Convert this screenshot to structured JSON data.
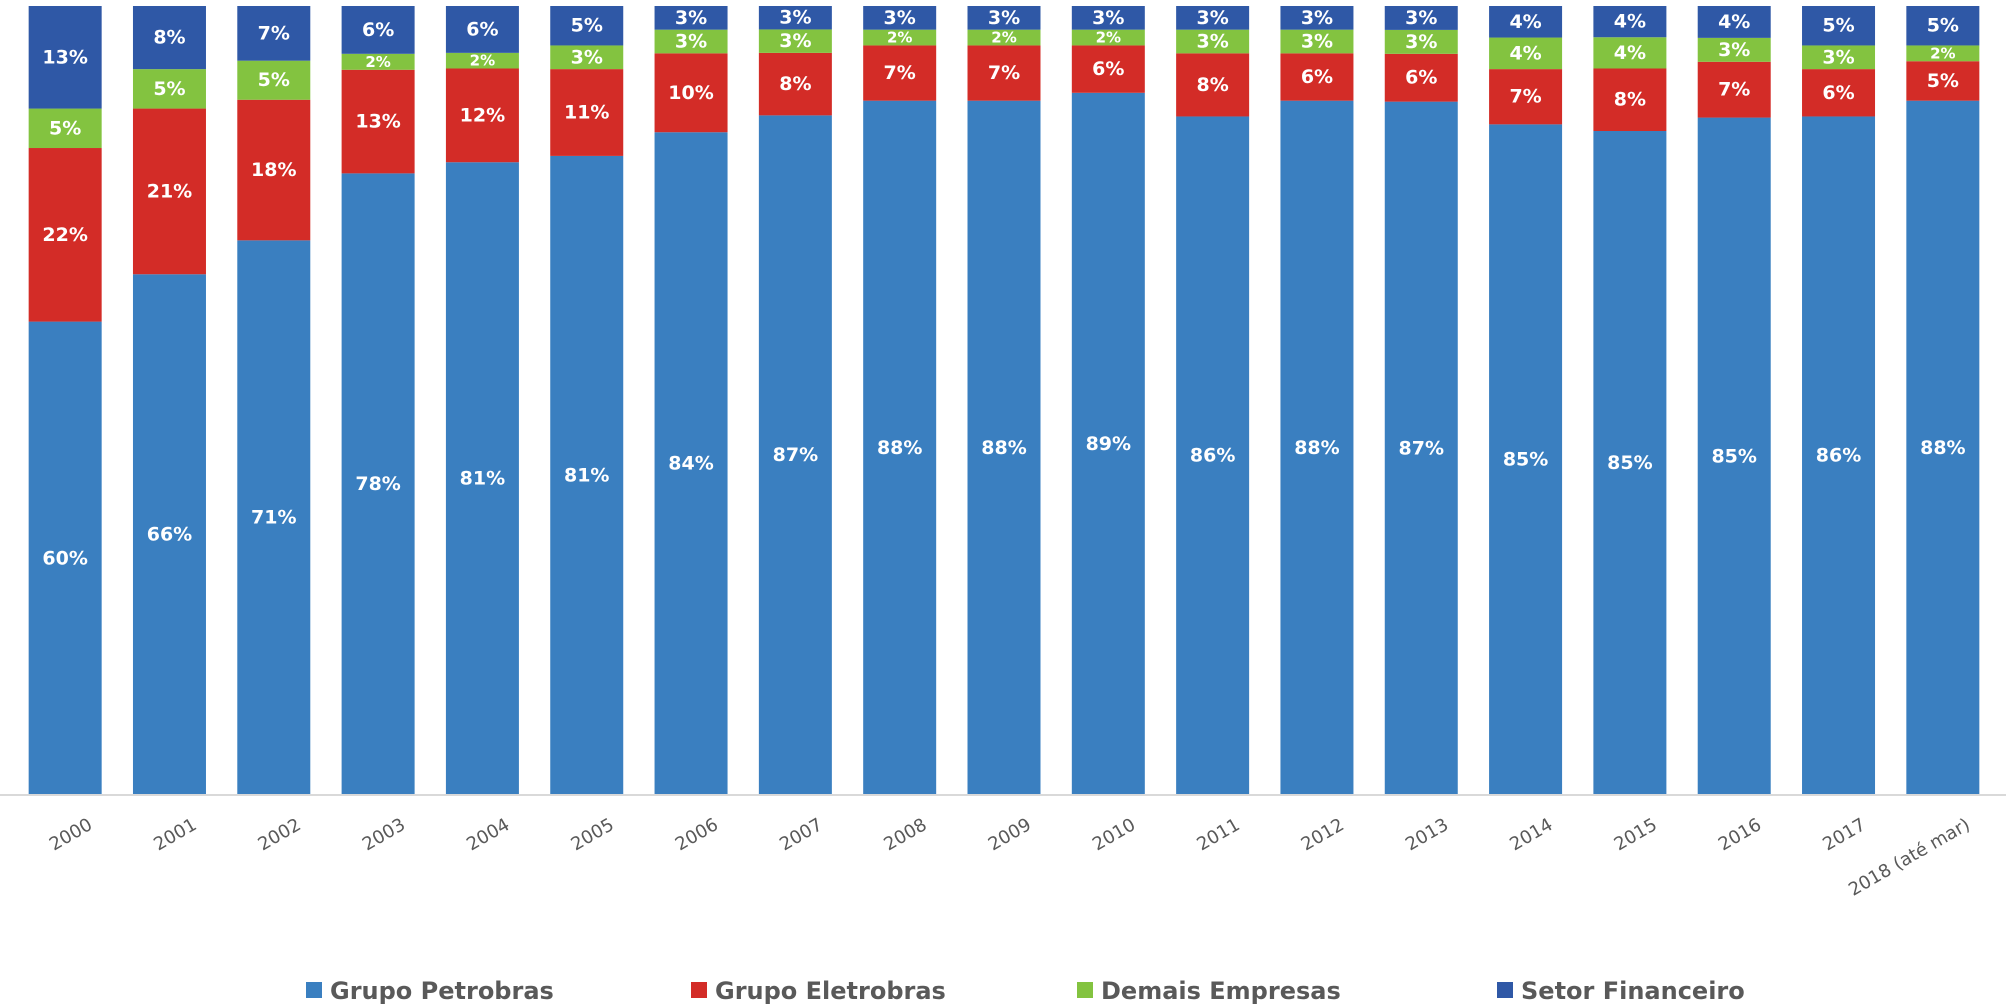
{
  "chart_data": {
    "type": "bar",
    "stacked": true,
    "normalized": true,
    "categories": [
      "2000",
      "2001",
      "2002",
      "2003",
      "2004",
      "2005",
      "2006",
      "2007",
      "2008",
      "2009",
      "2010",
      "2011",
      "2012",
      "2013",
      "2014",
      "2015",
      "2016",
      "2017",
      "2018 (até mar)"
    ],
    "series": [
      {
        "name": "Grupo Petrobras",
        "color": "#3a7fc0",
        "values": [
          60,
          66,
          71,
          78,
          81,
          81,
          84,
          87,
          88,
          88,
          89,
          86,
          88,
          87,
          85,
          85,
          85,
          86,
          88
        ],
        "labels": [
          "60%",
          "66%",
          "71%",
          "78%",
          "81%",
          "81%",
          "84%",
          "87%",
          "88%",
          "88%",
          "89%",
          "86%",
          "88%",
          "87%",
          "85%",
          "85%",
          "85%",
          "86%",
          "88%"
        ]
      },
      {
        "name": "Grupo Eletrobras",
        "color": "#d32c27",
        "values": [
          22,
          21,
          18,
          13,
          12,
          11,
          10,
          8,
          7,
          7,
          6,
          8,
          6,
          6,
          7,
          8,
          7,
          6,
          5
        ],
        "labels": [
          "22%",
          "21%",
          "18%",
          "13%",
          "12%",
          "11%",
          "10%",
          "8%",
          "7%",
          "7%",
          "6%",
          "8%",
          "6%",
          "6%",
          "7%",
          "8%",
          "7%",
          "6%",
          "5%"
        ]
      },
      {
        "name": "Demais Empresas",
        "color": "#83c340",
        "values": [
          5,
          5,
          5,
          2,
          2,
          3,
          3,
          3,
          2,
          2,
          2,
          3,
          3,
          3,
          4,
          4,
          3,
          3,
          2
        ],
        "labels": [
          "5%",
          "5%",
          "5%",
          "2%",
          "2%",
          "3%",
          "3%",
          "3%",
          "2%",
          "2%",
          "2%",
          "3%",
          "3%",
          "3%",
          "4%",
          "4%",
          "3%",
          "3%",
          "2%"
        ]
      },
      {
        "name": "Setor Financeiro",
        "color": "#2f58a6",
        "values": [
          13,
          8,
          7,
          6,
          6,
          5,
          3,
          3,
          3,
          3,
          3,
          3,
          3,
          3,
          4,
          4,
          4,
          5,
          5
        ],
        "labels": [
          "13%",
          "8%",
          "7%",
          "6%",
          "6%",
          "5%",
          "3%",
          "3%",
          "3%",
          "3%",
          "3%",
          "3%",
          "3%",
          "3%",
          "4%",
          "4%",
          "4%",
          "5%",
          "5%"
        ]
      }
    ],
    "ylim": [
      0,
      100
    ],
    "grid": false,
    "legend_position": "bottom",
    "axis_color": "#d9d9d9",
    "tick_color": "#595959"
  }
}
